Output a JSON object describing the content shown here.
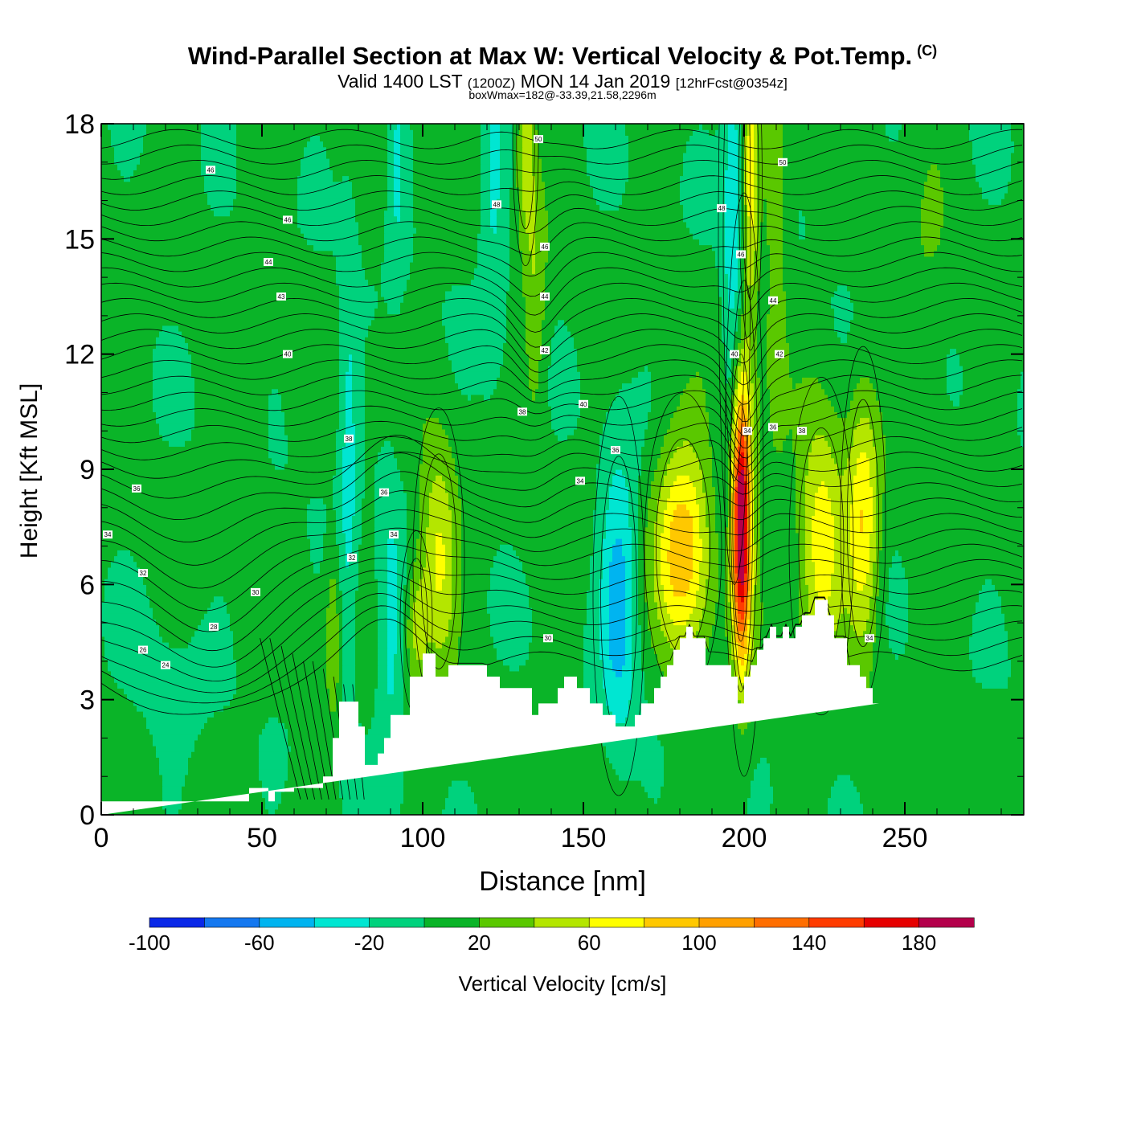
{
  "header": {
    "title": "Wind-Parallel Section at Max W: Vertical Velocity & Pot.Temp.",
    "copyright_mark": "(C)",
    "subtitle_main": "Valid 1400 LST",
    "subtitle_utc": "(1200Z)",
    "subtitle_date": "MON 14 Jan 2019",
    "subtitle_fcst": "[12hrFcst@0354z]",
    "box_info": "boxWmax=182@-33.39,21.58,2296m"
  },
  "chart_data": {
    "type": "heatmap",
    "title": "Wind-Parallel Section at Max W: Vertical Velocity & Pot.Temp.",
    "xlabel": "Distance [nm]",
    "ylabel": "Height [Kft MSL]",
    "xlim": [
      0,
      287
    ],
    "ylim": [
      0,
      18
    ],
    "x_ticks": [
      0,
      50,
      100,
      150,
      200,
      250
    ],
    "y_ticks": [
      0,
      3,
      6,
      9,
      12,
      15,
      18
    ],
    "colorbar": {
      "label": "Vertical Velocity [cm/s]",
      "bounds": [
        -100,
        -80,
        -60,
        -40,
        -20,
        0,
        20,
        40,
        60,
        80,
        100,
        120,
        140,
        160,
        180,
        200
      ],
      "tick_labels": [
        "-100",
        "-60",
        "-20",
        "20",
        "60",
        "100",
        "140",
        "180"
      ],
      "colors": [
        "#0a28e8",
        "#1478f0",
        "#00b4f0",
        "#00e6d2",
        "#00d27d",
        "#0ab428",
        "#5ac800",
        "#b4e600",
        "#ffff00",
        "#ffc800",
        "#ffa000",
        "#ff6e00",
        "#ff3c00",
        "#e60000",
        "#b4004b"
      ]
    },
    "background_w": 5,
    "w_features": [
      {
        "x": 199,
        "z": 7.6,
        "sx": 1.8,
        "sz": 2.2,
        "w": 176
      },
      {
        "x": 200,
        "z": 8.6,
        "sx": 3.0,
        "sz": 3.8,
        "w": 55
      },
      {
        "x": 181,
        "z": 7.0,
        "sx": 6.0,
        "sz": 2.0,
        "w": 92
      },
      {
        "x": 224,
        "z": 7.0,
        "sx": 5.0,
        "sz": 2.2,
        "w": 72
      },
      {
        "x": 237,
        "z": 7.6,
        "sx": 3.5,
        "sz": 2.3,
        "w": 72
      },
      {
        "x": 105,
        "z": 6.6,
        "sx": 4.0,
        "sz": 2.0,
        "w": 62
      },
      {
        "x": 98,
        "z": 5.0,
        "sx": 2.5,
        "sz": 1.2,
        "w": 40
      },
      {
        "x": 161,
        "z": 5.7,
        "sx": 4.0,
        "sz": 2.6,
        "w": -55
      },
      {
        "x": 90,
        "z": 4.5,
        "sx": 3.0,
        "sz": 3.0,
        "w": -32
      },
      {
        "x": 77,
        "z": 9.0,
        "sx": 2.0,
        "sz": 4.5,
        "w": -32
      },
      {
        "x": 92,
        "z": 17.0,
        "sx": 2.0,
        "sz": 2.0,
        "w": -30
      },
      {
        "x": 122,
        "z": 16.0,
        "sx": 3.0,
        "sz": 3.0,
        "w": -28
      },
      {
        "x": 197,
        "z": 15.0,
        "sx": 2.5,
        "sz": 4.5,
        "w": -45
      },
      {
        "x": 202,
        "z": 16.5,
        "sx": 1.8,
        "sz": 2.2,
        "w": 60
      },
      {
        "x": 132,
        "z": 17.5,
        "sx": 2.0,
        "sz": 1.6,
        "w": 50
      },
      {
        "x": 135,
        "z": 13.5,
        "sx": 2.5,
        "sz": 2.5,
        "w": 32
      },
      {
        "x": 210,
        "z": 14.5,
        "sx": 2.5,
        "sz": 4.0,
        "w": 28
      },
      {
        "x": 72,
        "z": 4.5,
        "sx": 1.5,
        "sz": 1.5,
        "w": 35
      },
      {
        "x": 47,
        "z": 12.0,
        "sx": 3.0,
        "sz": 5.0,
        "w": 12
      },
      {
        "x": 257,
        "z": 13.0,
        "sx": 5.0,
        "sz": 6.0,
        "w": 12
      },
      {
        "x": 20,
        "z": 3.0,
        "sx": 10.0,
        "sz": 2.0,
        "w": -8
      }
    ],
    "terrain": {
      "x": [
        0,
        46,
        46,
        52,
        52,
        54,
        54,
        60,
        60,
        69,
        69,
        72,
        72,
        74,
        74,
        80,
        80,
        82,
        82,
        86,
        86,
        88,
        88,
        90,
        90,
        96,
        96,
        100,
        100,
        104,
        104,
        108,
        108,
        120,
        120,
        124,
        124,
        134,
        134,
        136,
        136,
        142,
        142,
        144,
        144,
        148,
        148,
        152,
        152,
        156,
        156,
        160,
        160,
        166,
        166,
        168,
        168,
        172,
        172,
        174,
        174,
        176,
        176,
        178,
        178,
        180,
        180,
        182,
        182,
        184,
        184,
        188,
        188,
        196,
        196,
        198,
        198,
        200,
        200,
        202,
        202,
        204,
        204,
        206,
        206,
        208,
        208,
        210,
        210,
        212,
        212,
        214,
        214,
        216,
        216,
        218,
        218,
        222,
        222,
        226,
        226,
        228,
        228,
        232,
        232,
        236,
        236,
        238,
        238,
        240,
        240,
        242,
        242,
        244,
        244,
        246,
        246,
        258,
        258,
        287
      ],
      "z": [
        0.35,
        0.35,
        0.7,
        0.7,
        0.35,
        0.35,
        0.6,
        0.6,
        0.7,
        0.7,
        1.0,
        1.0,
        2.0,
        2.0,
        2.95,
        2.95,
        2.3,
        2.3,
        1.3,
        1.3,
        1.6,
        1.6,
        2.0,
        2.0,
        2.6,
        2.6,
        3.6,
        3.6,
        4.2,
        4.2,
        3.6,
        3.6,
        3.9,
        3.9,
        3.6,
        3.6,
        3.3,
        3.3,
        2.6,
        2.6,
        2.9,
        2.9,
        3.3,
        3.3,
        3.6,
        3.6,
        3.3,
        3.3,
        2.9,
        2.9,
        2.6,
        2.6,
        2.3,
        2.3,
        2.6,
        2.6,
        2.9,
        2.9,
        3.3,
        3.3,
        3.6,
        3.6,
        3.9,
        3.9,
        4.3,
        4.3,
        4.6,
        4.6,
        4.9,
        4.9,
        4.6,
        4.6,
        3.9,
        3.9,
        3.6,
        3.6,
        2.9,
        2.9,
        3.6,
        3.6,
        3.9,
        3.9,
        4.3,
        4.3,
        4.6,
        4.6,
        4.9,
        4.9,
        4.6,
        4.6,
        4.9,
        4.9,
        4.6,
        4.6,
        4.9,
        4.9,
        5.2,
        5.2,
        5.6,
        5.6,
        5.2,
        5.2,
        4.6,
        4.6,
        3.9,
        3.9,
        3.6,
        3.6,
        3.3,
        3.3,
        2.9,
        2.9,
        2.9
      ],
      "note": "white region below model terrain"
    },
    "theta_contours": {
      "base_kft": [
        4.0,
        4.4,
        4.8,
        5.2,
        5.6,
        6.0,
        6.4,
        6.8,
        7.2,
        7.6,
        8.0,
        8.4,
        8.8,
        9.2,
        9.6,
        10.0,
        10.4,
        10.8,
        11.2,
        11.6,
        12.0,
        12.4,
        12.8,
        13.2,
        13.6,
        14.0,
        14.4,
        14.8,
        15.2,
        15.6,
        16.0,
        16.4,
        16.8,
        17.2,
        17.6
      ]
    },
    "contour_labels": [
      {
        "text": "46",
        "x": 34,
        "z": 16.8
      },
      {
        "text": "46",
        "x": 58,
        "z": 15.5
      },
      {
        "text": "44",
        "x": 52,
        "z": 14.4
      },
      {
        "text": "43",
        "x": 56,
        "z": 13.5
      },
      {
        "text": "40",
        "x": 58,
        "z": 12.0
      },
      {
        "text": "38",
        "x": 77,
        "z": 9.8
      },
      {
        "text": "36",
        "x": 11,
        "z": 8.5
      },
      {
        "text": "34",
        "x": 2,
        "z": 7.3
      },
      {
        "text": "32",
        "x": 13,
        "z": 6.3
      },
      {
        "text": "30",
        "x": 48,
        "z": 5.8
      },
      {
        "text": "28",
        "x": 35,
        "z": 4.9
      },
      {
        "text": "26",
        "x": 13,
        "z": 4.3
      },
      {
        "text": "24",
        "x": 20,
        "z": 3.9
      },
      {
        "text": "32",
        "x": 78,
        "z": 6.7
      },
      {
        "text": "34",
        "x": 91,
        "z": 7.3
      },
      {
        "text": "36",
        "x": 88,
        "z": 8.4
      },
      {
        "text": "38",
        "x": 131,
        "z": 10.5
      },
      {
        "text": "36",
        "x": 160,
        "z": 9.5
      },
      {
        "text": "34",
        "x": 149,
        "z": 8.7
      },
      {
        "text": "40",
        "x": 150,
        "z": 10.7
      },
      {
        "text": "42",
        "x": 138,
        "z": 12.1
      },
      {
        "text": "44",
        "x": 138,
        "z": 13.5
      },
      {
        "text": "46",
        "x": 138,
        "z": 14.8
      },
      {
        "text": "48",
        "x": 123,
        "z": 15.9
      },
      {
        "text": "50",
        "x": 136,
        "z": 17.6
      },
      {
        "text": "48",
        "x": 193,
        "z": 15.8
      },
      {
        "text": "46",
        "x": 199,
        "z": 14.6
      },
      {
        "text": "44",
        "x": 209,
        "z": 13.4
      },
      {
        "text": "42",
        "x": 211,
        "z": 12.0
      },
      {
        "text": "40",
        "x": 197,
        "z": 12.0
      },
      {
        "text": "34",
        "x": 201,
        "z": 10.0
      },
      {
        "text": "36",
        "x": 209,
        "z": 10.1
      },
      {
        "text": "38",
        "x": 218,
        "z": 10.0
      },
      {
        "text": "50",
        "x": 212,
        "z": 17.0
      },
      {
        "text": "34",
        "x": 239,
        "z": 4.6
      },
      {
        "text": "30",
        "x": 139,
        "z": 4.6
      }
    ]
  }
}
